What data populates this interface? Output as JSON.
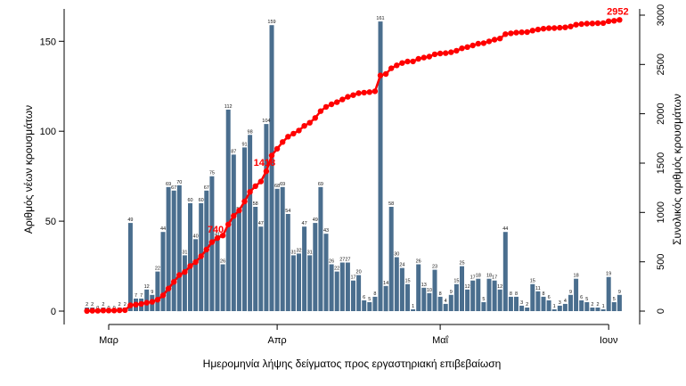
{
  "chart_data": {
    "type": "bar",
    "x": [
      "02-26",
      "02-27",
      "02-28",
      "02-29",
      "03-01",
      "03-02",
      "03-03",
      "03-04",
      "03-05",
      "03-06",
      "03-07",
      "03-08",
      "03-09",
      "03-10",
      "03-11",
      "03-12",
      "03-13",
      "03-14",
      "03-15",
      "03-16",
      "03-17",
      "03-18",
      "03-19",
      "03-20",
      "03-21",
      "03-22",
      "03-23",
      "03-24",
      "03-25",
      "03-26",
      "03-27",
      "03-28",
      "03-29",
      "03-30",
      "03-31",
      "04-01",
      "04-02",
      "04-03",
      "04-04",
      "04-05",
      "04-06",
      "04-07",
      "04-08",
      "04-09",
      "04-10",
      "04-11",
      "04-12",
      "04-13",
      "04-14",
      "04-15",
      "04-16",
      "04-17",
      "04-18",
      "04-19",
      "04-20",
      "04-21",
      "04-22",
      "04-23",
      "04-24",
      "04-25",
      "04-26",
      "04-27",
      "04-28",
      "04-29",
      "04-30",
      "05-01",
      "05-02",
      "05-03",
      "05-04",
      "05-05",
      "05-06",
      "05-07",
      "05-08",
      "05-09",
      "05-10",
      "05-11",
      "05-12",
      "05-13",
      "05-14",
      "05-15",
      "05-16",
      "05-17",
      "05-18",
      "05-19",
      "05-20",
      "05-21",
      "05-22",
      "05-23",
      "05-24",
      "05-25",
      "05-26",
      "05-27",
      "05-28",
      "05-29",
      "05-30",
      "05-31",
      "06-01",
      "06-02",
      "06-03"
    ],
    "series": [
      {
        "type": "bar",
        "color": "#4a6e8e",
        "values": [
          2,
          2,
          0,
          2,
          0,
          0,
          2,
          2,
          49,
          7,
          7,
          12,
          9,
          22,
          44,
          69,
          67,
          70,
          31,
          60,
          40,
          60,
          67,
          75,
          41,
          26,
          112,
          87,
          55,
          91,
          98,
          58,
          47,
          104,
          159,
          68,
          69,
          54,
          31,
          32,
          47,
          31,
          49,
          69,
          43,
          26,
          22,
          27,
          27,
          17,
          20,
          6,
          5,
          8,
          161,
          14,
          58,
          30,
          24,
          15,
          1,
          26,
          13,
          10,
          23,
          8,
          4,
          9,
          15,
          25,
          12,
          17,
          18,
          5,
          18,
          17,
          12,
          44,
          8,
          8,
          3,
          2,
          15,
          11,
          8,
          6,
          1,
          3,
          4,
          9,
          18,
          6,
          5,
          2,
          2,
          1,
          19,
          5,
          9
        ]
      },
      {
        "type": "line",
        "axis": "right",
        "color": "#ff0000",
        "values": [
          2,
          4,
          4,
          6,
          6,
          6,
          8,
          10,
          59,
          66,
          73,
          85,
          94,
          116,
          160,
          229,
          296,
          366,
          397,
          457,
          497,
          557,
          624,
          699,
          740,
          766,
          878,
          965,
          1020,
          1111,
          1209,
          1267,
          1314,
          1418,
          1577,
          1645,
          1714,
          1768,
          1799,
          1831,
          1878,
          1909,
          1958,
          2027,
          2070,
          2096,
          2118,
          2145,
          2172,
          2189,
          2209,
          2215,
          2220,
          2228,
          2389,
          2403,
          2461,
          2491,
          2515,
          2530,
          2531,
          2557,
          2570,
          2580,
          2603,
          2611,
          2615,
          2624,
          2639,
          2664,
          2676,
          2693,
          2711,
          2716,
          2734,
          2751,
          2763,
          2807,
          2815,
          2823,
          2826,
          2828,
          2843,
          2854,
          2862,
          2868,
          2869,
          2872,
          2876,
          2885,
          2903,
          2909,
          2914,
          2916,
          2918,
          2919,
          2938,
          2943,
          2952
        ]
      }
    ],
    "annotations": [
      {
        "text": "740",
        "x": "03-21"
      },
      {
        "text": "1418",
        "x": "03-30"
      },
      {
        "text": "2952",
        "x": "06-03"
      }
    ],
    "xlabel": "Ημερομηνία λήψης δείγματος προς εργαστηριακή επιβεβαίωση",
    "ylabel": "Αριθμός νέων κρουσμάτων",
    "y2label": "Συνολικός αριθμός κρουσμάτων",
    "x_tick_labels": [
      "Μαρ",
      "Απρ",
      "Μαΐ",
      "Ιουν"
    ],
    "y_ticks": [
      0,
      50,
      100,
      150
    ],
    "y2_ticks": [
      0,
      500,
      1000,
      1500,
      2000,
      2500,
      3000
    ],
    "ylim": [
      0,
      168
    ],
    "y2lim": [
      0,
      3063
    ],
    "grid": false,
    "legend": "none"
  }
}
